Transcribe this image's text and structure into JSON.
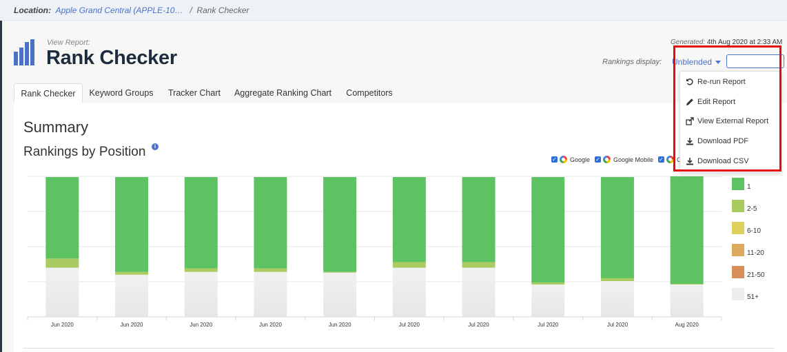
{
  "breadcrumb": {
    "label": "Location:",
    "location": "Apple Grand Central (APPLE-10…",
    "separator": "/",
    "current": "Rank Checker"
  },
  "header": {
    "view_report_label": "View Report:",
    "title": "Rank Checker",
    "generated_label": "Generated:",
    "generated_value": "4th Aug 2020 at 2:33 AM",
    "rankings_display_label": "Rankings display:",
    "rankings_display_value": "Unblended"
  },
  "tabs": [
    {
      "label": "Rank Checker",
      "active": true
    },
    {
      "label": "Keyword Groups",
      "active": false
    },
    {
      "label": "Tracker Chart",
      "active": false
    },
    {
      "label": "Aggregate Ranking Chart",
      "active": false
    },
    {
      "label": "Competitors",
      "active": false
    }
  ],
  "summary": {
    "title": "Summary",
    "subtitle": "Rankings by Position",
    "info_icon": "i"
  },
  "engines": [
    {
      "label": "Google",
      "checked": true
    },
    {
      "label": "Google Mobile",
      "checked": true
    },
    {
      "label": "G",
      "checked": true
    }
  ],
  "menu": {
    "items": [
      {
        "label": "Re-run Report",
        "icon": "undo-icon"
      },
      {
        "label": "Edit Report",
        "icon": "pencil-icon"
      },
      {
        "label": "View External Report",
        "icon": "external-link-icon"
      },
      {
        "label": "Download PDF",
        "icon": "download-icon"
      },
      {
        "label": "Download CSV",
        "icon": "download-icon"
      }
    ]
  },
  "colors": {
    "1": "#5cc262",
    "2-5": "#aacb60",
    "6-10": "#dccf5c",
    "11-20": "#dca95f",
    "21-50": "#d88f5c",
    "51+": "#ececec",
    "accent": "#4b72c9",
    "highlight": "#e30b0b"
  },
  "chart_data": {
    "type": "bar",
    "stacked": true,
    "categories": [
      "Jun 2020",
      "Jun 2020",
      "Jun 2020",
      "Jun 2020",
      "Jun 2020",
      "Jul 2020",
      "Jul 2020",
      "Jul 2020",
      "Jul 2020",
      "Aug 2020"
    ],
    "series": [
      {
        "name": "1",
        "values": [
          116,
          135,
          130,
          130,
          135,
          121,
          121,
          150,
          144,
          153
        ]
      },
      {
        "name": "2-5",
        "values": [
          13,
          4,
          5,
          5,
          1,
          8,
          8,
          3,
          4,
          1
        ]
      },
      {
        "name": "6-10",
        "values": [
          0,
          0,
          0,
          0,
          0,
          0,
          0,
          0,
          0,
          0
        ]
      },
      {
        "name": "11-20",
        "values": [
          0,
          0,
          0,
          0,
          0,
          0,
          0,
          0,
          0,
          0
        ]
      },
      {
        "name": "21-50",
        "values": [
          0,
          0,
          0,
          0,
          0,
          0,
          0,
          0,
          0,
          0
        ]
      },
      {
        "name": "51+",
        "values": [
          70,
          60,
          64,
          64,
          63,
          70,
          70,
          46,
          51,
          46
        ]
      }
    ],
    "ylim": [
      0,
      200
    ],
    "grid": true,
    "legend": "right"
  }
}
